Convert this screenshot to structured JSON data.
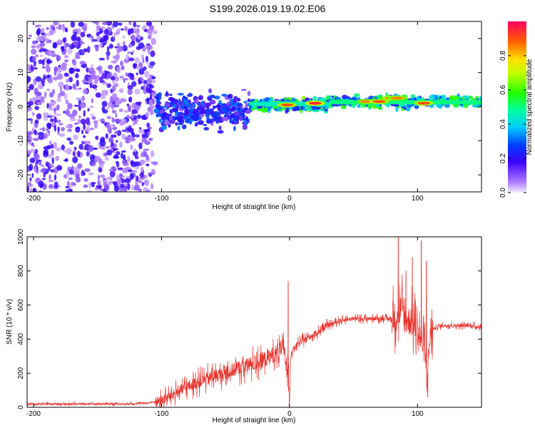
{
  "title": "S199.2026.019.19.02.E06",
  "chart_data": [
    {
      "type": "heatmap",
      "xlabel": "Height of straight line (km)",
      "ylabel": "Frequency (Hz)",
      "xlim": [
        -205,
        150
      ],
      "ylim": [
        -25,
        25
      ],
      "xticks": [
        -200,
        -100,
        0,
        100
      ],
      "yticks": [
        -20,
        -10,
        0,
        10,
        20
      ],
      "colorbar": {
        "label": "Normalized spectral amplitude",
        "range": [
          0,
          1
        ],
        "ticks": [
          0.0,
          0.2,
          0.4,
          0.6,
          0.8
        ]
      },
      "regions": [
        {
          "x_range": [
            -205,
            -105
          ],
          "freq_range": [
            -25,
            25
          ],
          "amplitude": 0.15,
          "description": "scattered noise"
        },
        {
          "x_range": [
            -105,
            -30
          ],
          "freq_range": [
            -8,
            6
          ],
          "amplitude": 0.3
        },
        {
          "x_range": [
            -30,
            30
          ],
          "freq_range": [
            -2,
            3
          ],
          "amplitude": 0.6
        },
        {
          "x_range": [
            30,
            150
          ],
          "freq_range": [
            -1,
            4
          ],
          "amplitude": 0.55
        }
      ],
      "peaks": [
        {
          "x": -2,
          "freq": 0.5,
          "amplitude": 0.9
        },
        {
          "x": 20,
          "freq": 1,
          "amplitude": 0.95
        },
        {
          "x": 60,
          "freq": 1.5,
          "amplitude": 0.85
        },
        {
          "x": 70,
          "freq": 1.5,
          "amplitude": 0.9
        },
        {
          "x": 80,
          "freq": 2.5,
          "amplitude": 0.9
        },
        {
          "x": 84,
          "freq": 2.5,
          "amplitude": 0.85
        },
        {
          "x": 105,
          "freq": 1,
          "amplitude": 0.9
        }
      ]
    },
    {
      "type": "line",
      "xlabel": "Height of straight line (km)",
      "ylabel": "SNR (10 * v/v)",
      "xlim": [
        -205,
        150
      ],
      "ylim": [
        0,
        1000
      ],
      "xticks": [
        -200,
        -100,
        0,
        100
      ],
      "yticks": [
        0,
        200,
        400,
        600,
        800,
        1000
      ],
      "series": [
        {
          "name": "SNR",
          "color": "#e8322c",
          "x": [
            -205,
            -190,
            -170,
            -150,
            -130,
            -110,
            -100,
            -90,
            -80,
            -70,
            -60,
            -50,
            -40,
            -30,
            -20,
            -10,
            -5,
            -1,
            0,
            1,
            5,
            10,
            20,
            30,
            40,
            50,
            60,
            70,
            80,
            85,
            88,
            90,
            95,
            100,
            105,
            108,
            110,
            115,
            120,
            130,
            140,
            150
          ],
          "values": [
            20,
            20,
            20,
            20,
            20,
            25,
            40,
            80,
            120,
            150,
            180,
            200,
            230,
            250,
            280,
            320,
            350,
            200,
            0,
            320,
            360,
            390,
            430,
            480,
            510,
            520,
            520,
            520,
            520,
            540,
            600,
            520,
            500,
            450,
            350,
            200,
            450,
            470,
            480,
            480,
            480,
            470
          ]
        }
      ],
      "spikes": [
        {
          "x": -1,
          "value": 740
        },
        {
          "x": 85,
          "value": 1000
        },
        {
          "x": 91,
          "value": 800
        },
        {
          "x": 96,
          "value": 880
        },
        {
          "x": 103,
          "value": 980
        },
        {
          "x": 107,
          "value": 860
        },
        {
          "x": 108,
          "value": 60
        }
      ]
    }
  ]
}
